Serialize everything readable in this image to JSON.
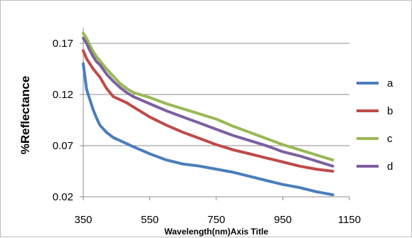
{
  "chart_data": {
    "type": "line",
    "title": "",
    "xlabel": "Wavelength(nm)Axis Title",
    "ylabel": "%Reflectance",
    "xlim": [
      350,
      1150
    ],
    "ylim": [
      0.02,
      0.17
    ],
    "xticks": [
      350,
      550,
      750,
      950,
      1150
    ],
    "xtick_labels": [
      "350",
      "550",
      "750",
      "950",
      "1150"
    ],
    "yticks": [
      0.02,
      0.07,
      0.12,
      0.17
    ],
    "ytick_labels": [
      "0.02",
      "0.07",
      "0.12",
      "0.17"
    ],
    "grid": "horizontal",
    "legend_position": "right",
    "series": [
      {
        "name": "a",
        "color": "#4a7ebb",
        "x": [
          350,
          360,
          370,
          380,
          390,
          400,
          420,
          440,
          460,
          480,
          500,
          550,
          600,
          650,
          700,
          750,
          800,
          850,
          900,
          950,
          1000,
          1050,
          1100
        ],
        "y": [
          0.15,
          0.125,
          0.115,
          0.105,
          0.097,
          0.09,
          0.083,
          0.078,
          0.075,
          0.072,
          0.069,
          0.062,
          0.056,
          0.052,
          0.05,
          0.047,
          0.044,
          0.04,
          0.036,
          0.032,
          0.029,
          0.025,
          0.022
        ]
      },
      {
        "name": "b",
        "color": "#be4b48",
        "x": [
          350,
          360,
          370,
          380,
          390,
          400,
          420,
          440,
          460,
          480,
          500,
          550,
          600,
          650,
          700,
          750,
          800,
          850,
          900,
          950,
          1000,
          1050,
          1100
        ],
        "y": [
          0.163,
          0.155,
          0.15,
          0.145,
          0.141,
          0.137,
          0.126,
          0.118,
          0.115,
          0.112,
          0.108,
          0.098,
          0.09,
          0.083,
          0.077,
          0.071,
          0.066,
          0.062,
          0.058,
          0.054,
          0.05,
          0.047,
          0.045
        ]
      },
      {
        "name": "c",
        "color": "#98b954",
        "x": [
          350,
          360,
          370,
          380,
          390,
          400,
          420,
          440,
          460,
          480,
          500,
          550,
          600,
          650,
          700,
          750,
          800,
          850,
          900,
          950,
          1000,
          1050,
          1100
        ],
        "y": [
          0.18,
          0.175,
          0.168,
          0.162,
          0.157,
          0.153,
          0.145,
          0.138,
          0.131,
          0.126,
          0.122,
          0.117,
          0.111,
          0.106,
          0.101,
          0.096,
          0.089,
          0.083,
          0.077,
          0.071,
          0.066,
          0.061,
          0.056
        ]
      },
      {
        "name": "d",
        "color": "#7d60a0",
        "x": [
          350,
          360,
          370,
          380,
          390,
          400,
          420,
          440,
          460,
          480,
          500,
          550,
          600,
          650,
          700,
          750,
          800,
          850,
          900,
          950,
          1000,
          1050,
          1100
        ],
        "y": [
          0.175,
          0.17,
          0.163,
          0.157,
          0.152,
          0.149,
          0.14,
          0.133,
          0.127,
          0.122,
          0.118,
          0.111,
          0.104,
          0.098,
          0.092,
          0.086,
          0.08,
          0.075,
          0.07,
          0.064,
          0.06,
          0.055,
          0.05
        ]
      }
    ]
  }
}
